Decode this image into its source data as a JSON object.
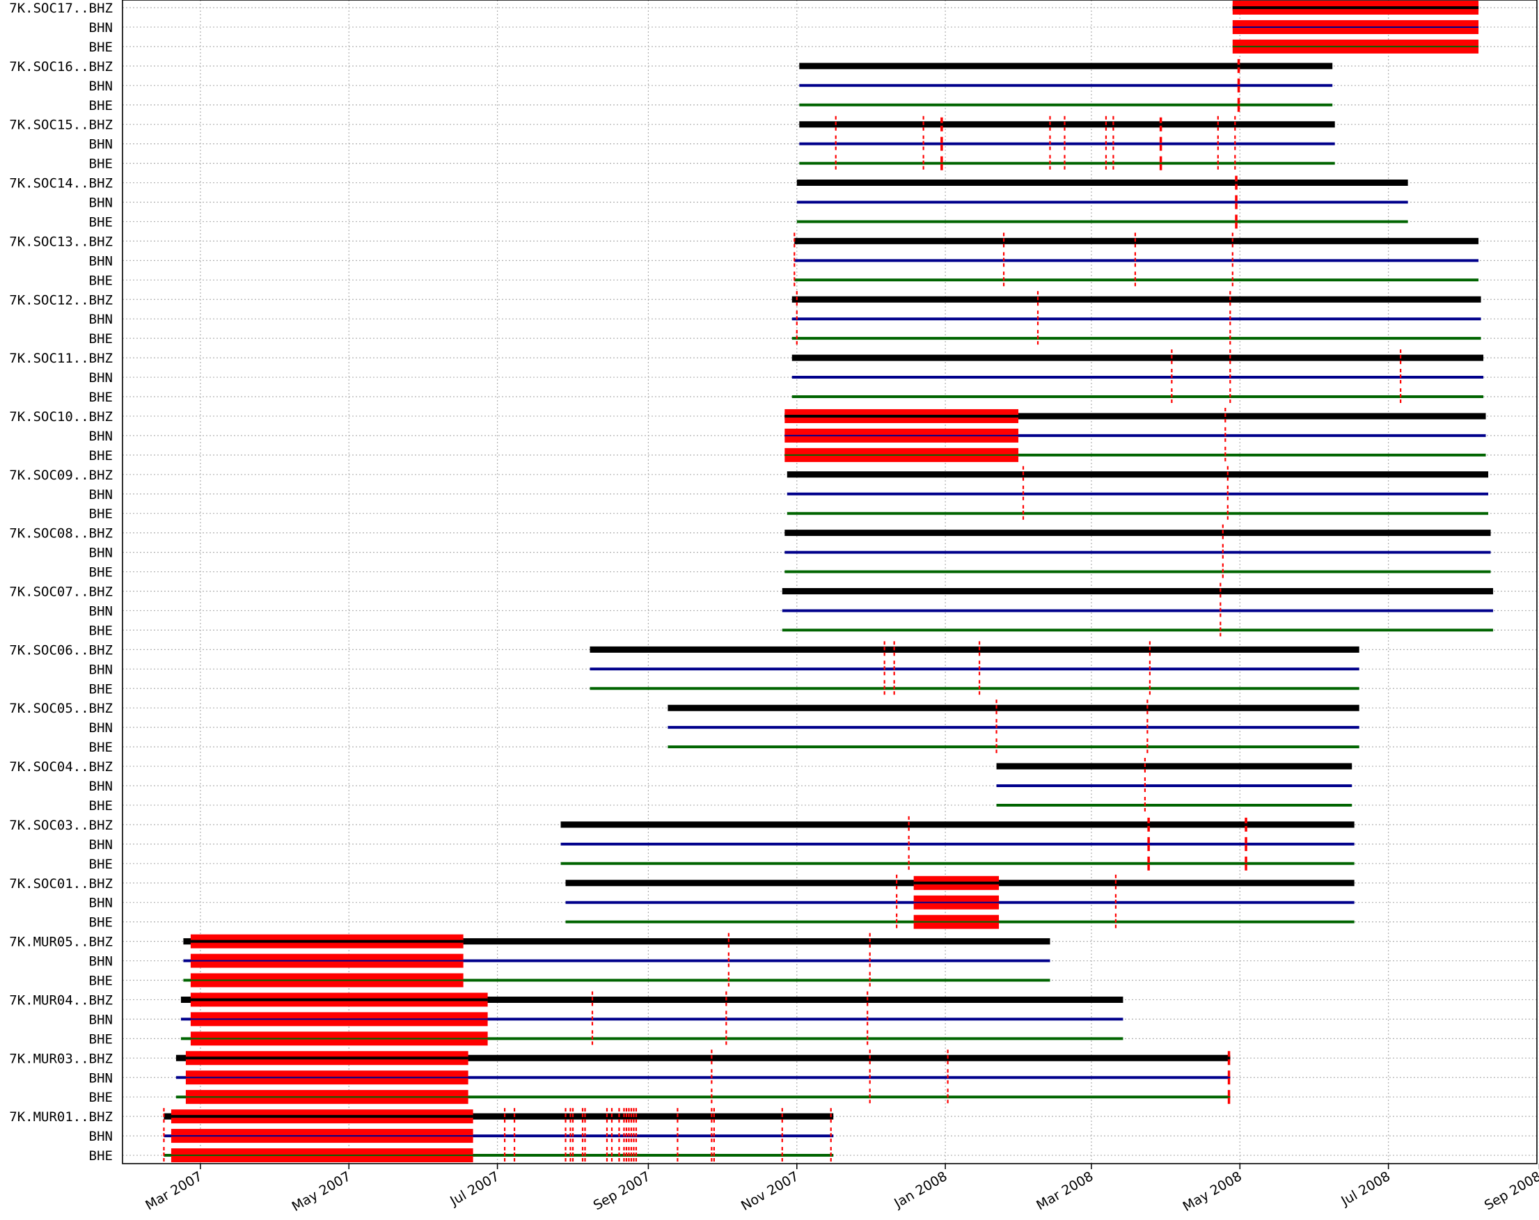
{
  "chart_data": {
    "type": "timeline",
    "x_axis": {
      "type": "date",
      "range": [
        "2007-01-28",
        "2008-08-31"
      ],
      "ticks": [
        {
          "date": "2007-03-01",
          "label": "Mar 2007"
        },
        {
          "date": "2007-05-01",
          "label": "May 2007"
        },
        {
          "date": "2007-07-01",
          "label": "Jul 2007"
        },
        {
          "date": "2007-09-01",
          "label": "Sep 2007"
        },
        {
          "date": "2007-11-01",
          "label": "Nov 2007"
        },
        {
          "date": "2008-01-01",
          "label": "Jan 2008"
        },
        {
          "date": "2008-03-01",
          "label": "Mar 2008"
        },
        {
          "date": "2008-05-01",
          "label": "May 2008"
        },
        {
          "date": "2008-07-01",
          "label": "Jul 2008"
        },
        {
          "date": "2008-09-01",
          "label": "Sep 2008"
        }
      ]
    },
    "grid": true,
    "channel_colors": {
      "BHZ": "#000000",
      "BHN": "#00008b",
      "BHE": "#006400"
    },
    "gap_color": "#ff0000",
    "stations": [
      {
        "station": "7K.SOC17",
        "start": "2008-04-28",
        "end": "2008-08-07",
        "gaps": [
          [
            "2008-04-28",
            "2008-08-07"
          ]
        ]
      },
      {
        "station": "7K.SOC16",
        "start": "2007-11-02",
        "end": "2008-06-08",
        "gaps": [
          [
            "2008-04-30",
            "2008-05-01"
          ]
        ]
      },
      {
        "station": "7K.SOC15",
        "start": "2007-11-02",
        "end": "2008-06-09",
        "gaps": [
          [
            "2007-11-17",
            "2007-11-17"
          ],
          [
            "2007-12-23",
            "2007-12-23"
          ],
          [
            "2007-12-30",
            "2007-12-31"
          ],
          [
            "2008-02-13",
            "2008-02-13"
          ],
          [
            "2008-02-19",
            "2008-02-19"
          ],
          [
            "2008-03-07",
            "2008-03-07"
          ],
          [
            "2008-03-10",
            "2008-03-10"
          ],
          [
            "2008-03-29",
            "2008-03-30"
          ],
          [
            "2008-04-22",
            "2008-04-22"
          ],
          [
            "2008-04-29",
            "2008-04-29"
          ]
        ]
      },
      {
        "station": "7K.SOC14",
        "start": "2007-11-01",
        "end": "2008-07-09",
        "gaps": [
          [
            "2008-04-29",
            "2008-04-30"
          ]
        ]
      },
      {
        "station": "7K.SOC13",
        "start": "2007-10-31",
        "end": "2008-08-07",
        "gaps": [
          [
            "2007-10-31",
            "2007-10-31"
          ],
          [
            "2008-01-25",
            "2008-01-25"
          ],
          [
            "2008-03-19",
            "2008-03-19"
          ],
          [
            "2008-04-28",
            "2008-04-28"
          ]
        ]
      },
      {
        "station": "7K.SOC12",
        "start": "2007-10-30",
        "end": "2008-08-08",
        "gaps": [
          [
            "2007-11-01",
            "2007-11-01"
          ],
          [
            "2008-02-08",
            "2008-02-08"
          ],
          [
            "2008-04-27",
            "2008-04-27"
          ]
        ]
      },
      {
        "station": "7K.SOC11",
        "start": "2007-10-30",
        "end": "2008-08-09",
        "gaps": [
          [
            "2008-04-03",
            "2008-04-03"
          ],
          [
            "2008-04-27",
            "2008-04-27"
          ],
          [
            "2008-07-06",
            "2008-07-06"
          ]
        ]
      },
      {
        "station": "7K.SOC10",
        "start": "2007-10-27",
        "end": "2008-08-10",
        "gaps": [
          [
            "2007-10-27",
            "2008-01-31"
          ],
          [
            "2008-04-25",
            "2008-04-25"
          ]
        ]
      },
      {
        "station": "7K.SOC09",
        "start": "2007-10-28",
        "end": "2008-08-11",
        "gaps": [
          [
            "2008-02-02",
            "2008-02-02"
          ],
          [
            "2008-04-26",
            "2008-04-26"
          ]
        ]
      },
      {
        "station": "7K.SOC08",
        "start": "2007-10-27",
        "end": "2008-08-12",
        "gaps": [
          [
            "2008-04-24",
            "2008-04-24"
          ]
        ]
      },
      {
        "station": "7K.SOC07",
        "start": "2007-10-26",
        "end": "2008-08-13",
        "gaps": [
          [
            "2008-04-23",
            "2008-04-23"
          ]
        ]
      },
      {
        "station": "7K.SOC06",
        "start": "2007-08-08",
        "end": "2008-06-19",
        "gaps": [
          [
            "2007-12-07",
            "2007-12-07"
          ],
          [
            "2007-12-11",
            "2007-12-11"
          ],
          [
            "2008-01-15",
            "2008-01-15"
          ],
          [
            "2008-03-25",
            "2008-03-25"
          ]
        ]
      },
      {
        "station": "7K.SOC05",
        "start": "2007-09-09",
        "end": "2008-06-19",
        "gaps": [
          [
            "2008-01-22",
            "2008-01-22"
          ],
          [
            "2008-03-24",
            "2008-03-24"
          ]
        ]
      },
      {
        "station": "7K.SOC04",
        "start": "2008-01-22",
        "end": "2008-06-16",
        "gaps": [
          [
            "2008-03-23",
            "2008-03-23"
          ]
        ]
      },
      {
        "station": "7K.SOC03",
        "start": "2007-07-27",
        "end": "2008-06-17",
        "gaps": [
          [
            "2007-12-17",
            "2007-12-17"
          ],
          [
            "2008-03-24",
            "2008-03-25"
          ],
          [
            "2008-05-03",
            "2008-05-04"
          ]
        ]
      },
      {
        "station": "7K.SOC01",
        "start": "2007-07-29",
        "end": "2008-06-17",
        "gaps": [
          [
            "2007-12-12",
            "2007-12-12"
          ],
          [
            "2007-12-19",
            "2008-01-23"
          ],
          [
            "2008-03-11",
            "2008-03-11"
          ]
        ]
      },
      {
        "station": "7K.MUR05",
        "start": "2007-02-22",
        "end": "2008-02-13",
        "gaps": [
          [
            "2007-02-25",
            "2007-06-17"
          ],
          [
            "2007-10-04",
            "2007-10-04"
          ],
          [
            "2007-12-01",
            "2007-12-01"
          ]
        ]
      },
      {
        "station": "7K.MUR04",
        "start": "2007-02-21",
        "end": "2008-03-14",
        "gaps": [
          [
            "2007-02-25",
            "2007-06-27"
          ],
          [
            "2007-08-09",
            "2007-08-09"
          ],
          [
            "2007-10-03",
            "2007-10-03"
          ],
          [
            "2007-11-30",
            "2007-11-30"
          ]
        ]
      },
      {
        "station": "7K.MUR03",
        "start": "2007-02-19",
        "end": "2008-04-27",
        "gaps": [
          [
            "2007-02-23",
            "2007-06-19"
          ],
          [
            "2007-09-27",
            "2007-09-27"
          ],
          [
            "2007-12-01",
            "2007-12-01"
          ],
          [
            "2008-01-02",
            "2008-01-02"
          ],
          [
            "2008-04-26",
            "2008-04-27"
          ]
        ]
      },
      {
        "station": "7K.MUR01",
        "start": "2007-02-14",
        "end": "2007-11-16",
        "gaps": [
          [
            "2007-02-14",
            "2007-02-14"
          ],
          [
            "2007-02-17",
            "2007-06-21"
          ],
          [
            "2007-07-04",
            "2007-07-04"
          ],
          [
            "2007-07-08",
            "2007-07-08"
          ],
          [
            "2007-07-29",
            "2007-07-29"
          ],
          [
            "2007-07-31",
            "2007-07-31"
          ],
          [
            "2007-08-01",
            "2007-08-01"
          ],
          [
            "2007-08-05",
            "2007-08-05"
          ],
          [
            "2007-08-06",
            "2007-08-06"
          ],
          [
            "2007-08-15",
            "2007-08-15"
          ],
          [
            "2007-08-17",
            "2007-08-17"
          ],
          [
            "2007-08-20",
            "2007-08-20"
          ],
          [
            "2007-08-22",
            "2007-08-22"
          ],
          [
            "2007-08-23",
            "2007-08-23"
          ],
          [
            "2007-08-24",
            "2007-08-24"
          ],
          [
            "2007-08-25",
            "2007-08-25"
          ],
          [
            "2007-08-26",
            "2007-08-26"
          ],
          [
            "2007-08-27",
            "2007-08-27"
          ],
          [
            "2007-09-13",
            "2007-09-13"
          ],
          [
            "2007-09-27",
            "2007-09-27"
          ],
          [
            "2007-09-28",
            "2007-09-28"
          ],
          [
            "2007-10-26",
            "2007-10-26"
          ],
          [
            "2007-11-15",
            "2007-11-15"
          ]
        ]
      }
    ]
  }
}
